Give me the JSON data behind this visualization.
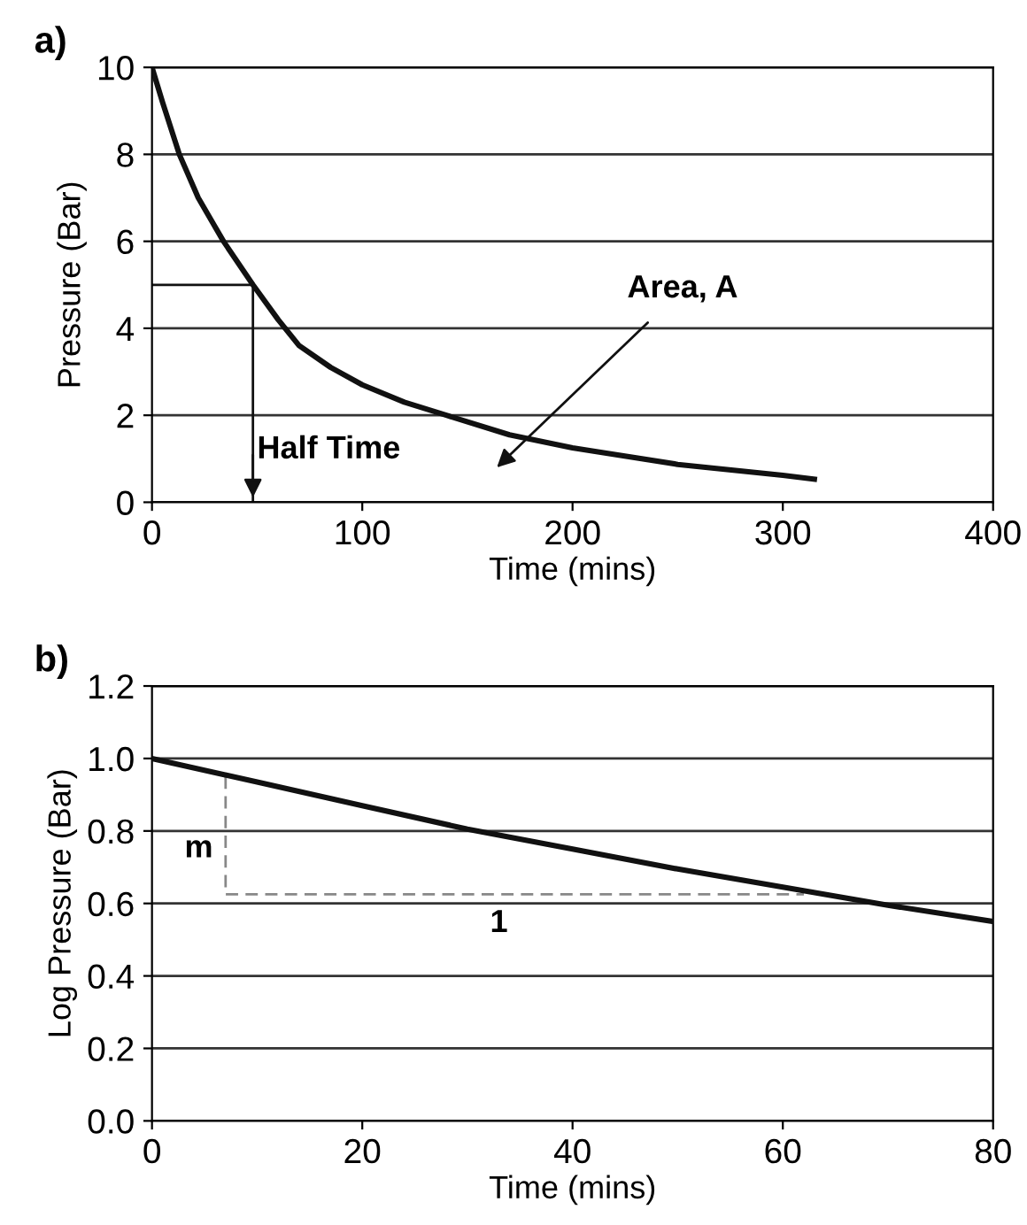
{
  "chart_data": [
    {
      "type": "line",
      "title": "a)",
      "xlabel": "Time (mins)",
      "ylabel": "Pressure (Bar)",
      "series": [
        {
          "color": "#111111",
          "x": [
            0,
            5,
            13,
            22,
            34,
            48,
            60,
            70,
            85,
            100,
            120,
            140,
            170,
            200,
            250,
            300,
            315
          ],
          "values": [
            10,
            9.2,
            8,
            7,
            6,
            5,
            4.2,
            3.6,
            3.1,
            2.7,
            2.3,
            2.0,
            1.55,
            1.25,
            0.87,
            0.62,
            0.53
          ]
        },
        {
          "color": "#111111",
          "line_style": "solid",
          "x": [
            0,
            48,
            48
          ],
          "values": [
            5,
            5,
            0
          ]
        }
      ],
      "annotations": [
        {
          "text": "Half Time",
          "x": 48,
          "y": 0
        },
        "Area, A"
      ],
      "xlim": [
        0,
        400
      ],
      "xticks": [
        0,
        100,
        200,
        300,
        400
      ],
      "ylim": [
        0,
        10
      ],
      "yticks": [
        0,
        2,
        4,
        6,
        8,
        10
      ],
      "grid": "y",
      "marker": "none"
    },
    {
      "type": "line",
      "title": "b)",
      "xlabel": "Time (mins)",
      "ylabel": "Log Pressure (Bar)",
      "series": [
        {
          "color": "#111111",
          "x": [
            0,
            10,
            20,
            30,
            40,
            50,
            60,
            70,
            80
          ],
          "values": [
            1.0,
            0.935,
            0.87,
            0.805,
            0.75,
            0.695,
            0.645,
            0.595,
            0.55
          ]
        },
        {
          "color": "#888888",
          "line_style": "dashed",
          "x": [
            7,
            7,
            62
          ],
          "values": [
            0.95,
            0.625,
            0.625
          ]
        }
      ],
      "annotations": [
        {
          "text": "m",
          "x": 7,
          "y": 0.79
        },
        {
          "text": "1",
          "x": 33,
          "y": 0.625
        }
      ],
      "xlim": [
        0,
        80
      ],
      "xticks": [
        0,
        20,
        40,
        60,
        80
      ],
      "ylim": [
        0,
        1.2
      ],
      "yticks": [
        {
          "value": 0,
          "label": "0.0"
        },
        {
          "value": 0.2,
          "label": "0.2"
        },
        {
          "value": 0.4,
          "label": "0.4"
        },
        {
          "value": 0.6,
          "label": "0.6"
        },
        {
          "value": 0.8,
          "label": "0.8"
        },
        {
          "value": 1.0,
          "label": "1.0"
        },
        {
          "value": 1.2,
          "label": "1.2"
        }
      ],
      "grid": "y",
      "marker": "none"
    }
  ]
}
